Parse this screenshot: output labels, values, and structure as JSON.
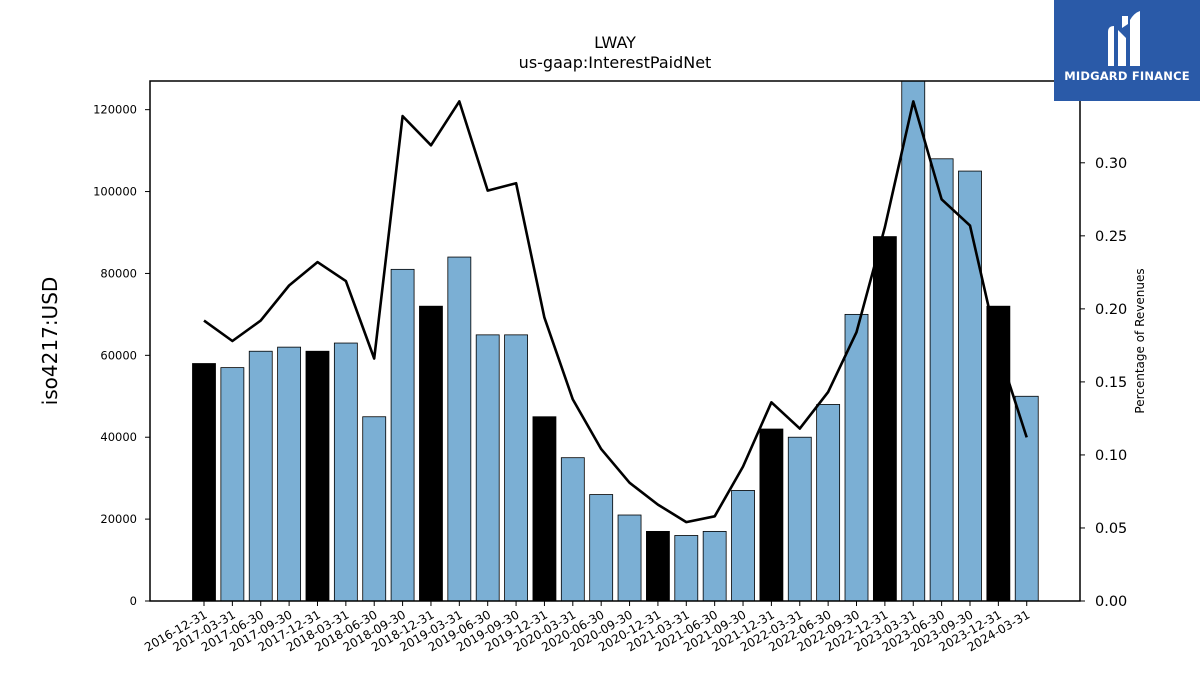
{
  "brand": {
    "name": "MIDGARD FINANCE",
    "color": "#2a5aa8",
    "logo_icon": "midgard-m-icon"
  },
  "chart_data": {
    "type": "bar+line",
    "title": "LWAY",
    "subtitle": "us-gaap:InterestPaidNet",
    "ylabel_left": "iso4217:USD",
    "ylabel_right": "Percentage of Revenues",
    "categories": [
      "2016-12-31",
      "2017-03-31",
      "2017-06-30",
      "2017-09-30",
      "2017-12-31",
      "2018-03-31",
      "2018-06-30",
      "2018-09-30",
      "2018-12-31",
      "2019-03-31",
      "2019-06-30",
      "2019-09-30",
      "2019-12-31",
      "2020-03-31",
      "2020-06-30",
      "2020-09-30",
      "2020-12-31",
      "2021-03-31",
      "2021-06-30",
      "2021-09-30",
      "2021-12-31",
      "2022-03-31",
      "2022-06-30",
      "2022-09-30",
      "2022-12-31",
      "2023-03-31",
      "2023-06-30",
      "2023-09-30",
      "2023-12-31",
      "2024-03-31"
    ],
    "bars": {
      "values": [
        58000,
        57000,
        61000,
        62000,
        61000,
        63000,
        45000,
        81000,
        72000,
        84000,
        65000,
        65000,
        45000,
        35000,
        26000,
        21000,
        17000,
        16000,
        17000,
        27000,
        42000,
        40000,
        48000,
        70000,
        89000,
        127000,
        108000,
        105000,
        72000,
        50000
      ],
      "fiscal_year_end": [
        true,
        false,
        false,
        false,
        true,
        false,
        false,
        false,
        true,
        false,
        false,
        false,
        true,
        false,
        false,
        false,
        true,
        false,
        false,
        false,
        true,
        false,
        false,
        false,
        true,
        false,
        false,
        false,
        true,
        false
      ],
      "color_quarter": "#7bafd4",
      "color_year_end": "#000000"
    },
    "line": {
      "name": "Percentage of Revenues",
      "values": [
        0.192,
        0.178,
        0.192,
        0.216,
        0.232,
        0.219,
        0.166,
        0.332,
        0.312,
        0.342,
        0.281,
        0.286,
        0.194,
        0.138,
        0.104,
        0.081,
        0.066,
        0.054,
        0.058,
        0.092,
        0.136,
        0.118,
        0.143,
        0.184,
        0.256,
        0.342,
        0.275,
        0.257,
        0.172,
        0.112
      ],
      "color": "#000000"
    },
    "yticks_left": [
      0,
      20000,
      40000,
      60000,
      80000,
      100000,
      120000
    ],
    "ylim_left": [
      0,
      127000
    ],
    "yticks_right": [
      "0.00",
      "0.05",
      "0.10",
      "0.15",
      "0.20",
      "0.25",
      "0.30"
    ],
    "ylim_right": [
      0,
      0.356
    ],
    "grid": false,
    "legend": "none"
  }
}
